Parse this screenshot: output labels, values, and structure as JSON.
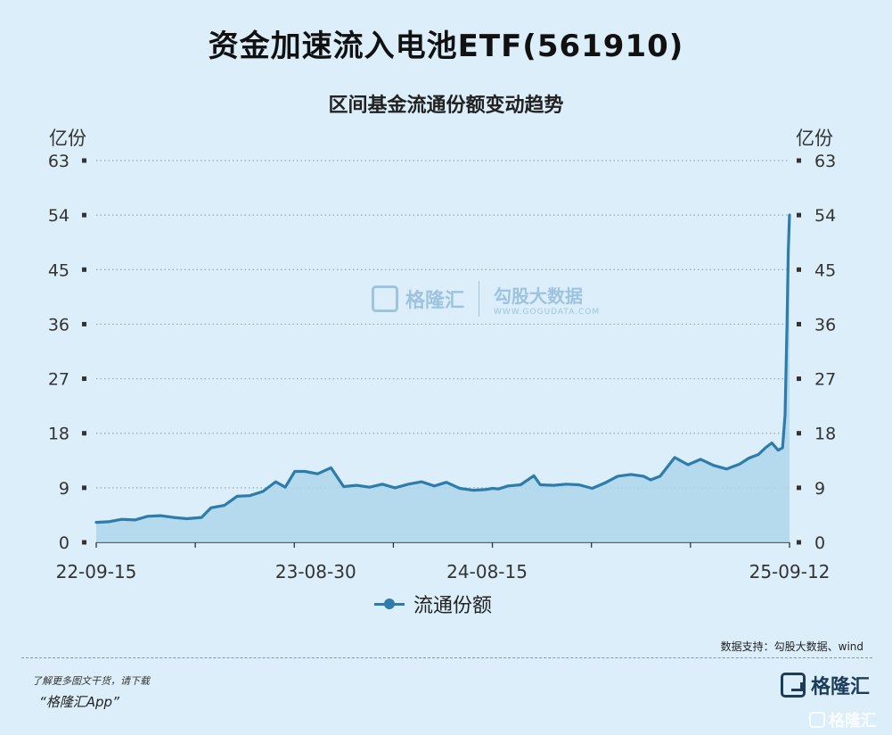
{
  "header": {
    "title": "资金加速流入电池ETF(561910)",
    "subtitle": "区间基金流通份额变动趋势"
  },
  "watermark": {
    "brand": "格隆汇",
    "brand2": "勾股大数据",
    "url": "WWW.GOGUDATA.COM"
  },
  "footer": {
    "source": "数据支持：勾股大数据、wind",
    "promo_line1": "了解更多图文干货，请下载",
    "promo_line2": "“格隆汇App”",
    "brand": "格隆汇",
    "corner_brand": "格隆汇"
  },
  "colors": {
    "line": "#2e7cab",
    "area": "#aed6ec",
    "background": "#dbeef9",
    "grid": "#8fa7b8"
  },
  "chart_data": {
    "type": "area",
    "title": "区间基金流通份额变动趋势",
    "unit_left": "亿份",
    "unit_right": "亿份",
    "ylim": [
      0,
      63
    ],
    "yticks": [
      "0",
      "9",
      "18",
      "27",
      "36",
      "45",
      "54",
      "63"
    ],
    "xlabels": [
      "22-09-15",
      "23-08-30",
      "24-08-15",
      "25-09-12"
    ],
    "grid": true,
    "legend_position": "bottom",
    "series": [
      {
        "name": "流通份额",
        "x": [
          "2022-09-15",
          "2022-10-05",
          "2022-10-25",
          "2022-11-15",
          "2022-12-05",
          "2022-12-25",
          "2023-01-15",
          "2023-02-05",
          "2023-02-28",
          "2023-03-15",
          "2023-04-05",
          "2023-04-25",
          "2023-05-15",
          "2023-06-05",
          "2023-06-25",
          "2023-07-10",
          "2023-07-25",
          "2023-08-10",
          "2023-08-30",
          "2023-09-20",
          "2023-10-10",
          "2023-10-30",
          "2023-11-20",
          "2023-12-10",
          "2023-12-30",
          "2024-01-20",
          "2024-02-10",
          "2024-03-01",
          "2024-03-20",
          "2024-04-10",
          "2024-05-01",
          "2024-05-20",
          "2024-06-01",
          "2024-06-10",
          "2024-06-25",
          "2024-07-15",
          "2024-08-05",
          "2024-08-15",
          "2024-09-05",
          "2024-09-25",
          "2024-10-15",
          "2024-11-05",
          "2024-11-25",
          "2024-12-15",
          "2025-01-05",
          "2025-01-25",
          "2025-02-05",
          "2025-02-20",
          "2025-03-15",
          "2025-04-05",
          "2025-04-25",
          "2025-05-15",
          "2025-06-05",
          "2025-06-25",
          "2025-07-10",
          "2025-07-25",
          "2025-08-05",
          "2025-08-15",
          "2025-08-25",
          "2025-09-01",
          "2025-09-05",
          "2025-09-08",
          "2025-09-10",
          "2025-09-12"
        ],
        "values": [
          3.3,
          3.4,
          3.8,
          3.7,
          4.3,
          4.4,
          4.1,
          3.9,
          4.1,
          5.7,
          6.1,
          7.6,
          7.7,
          8.4,
          10.0,
          9.1,
          11.7,
          11.7,
          11.3,
          12.3,
          9.2,
          9.4,
          9.1,
          9.6,
          9.0,
          9.6,
          10.0,
          9.3,
          9.9,
          8.9,
          8.6,
          8.7,
          8.9,
          8.8,
          9.3,
          9.5,
          11.0,
          9.5,
          9.4,
          9.6,
          9.5,
          8.9,
          9.8,
          10.9,
          11.2,
          10.9,
          10.3,
          10.9,
          14.0,
          12.8,
          13.7,
          12.7,
          12.1,
          12.9,
          13.9,
          14.5,
          15.6,
          16.4,
          15.2,
          15.6,
          21.0,
          36.0,
          48.0,
          54.0
        ]
      }
    ]
  }
}
